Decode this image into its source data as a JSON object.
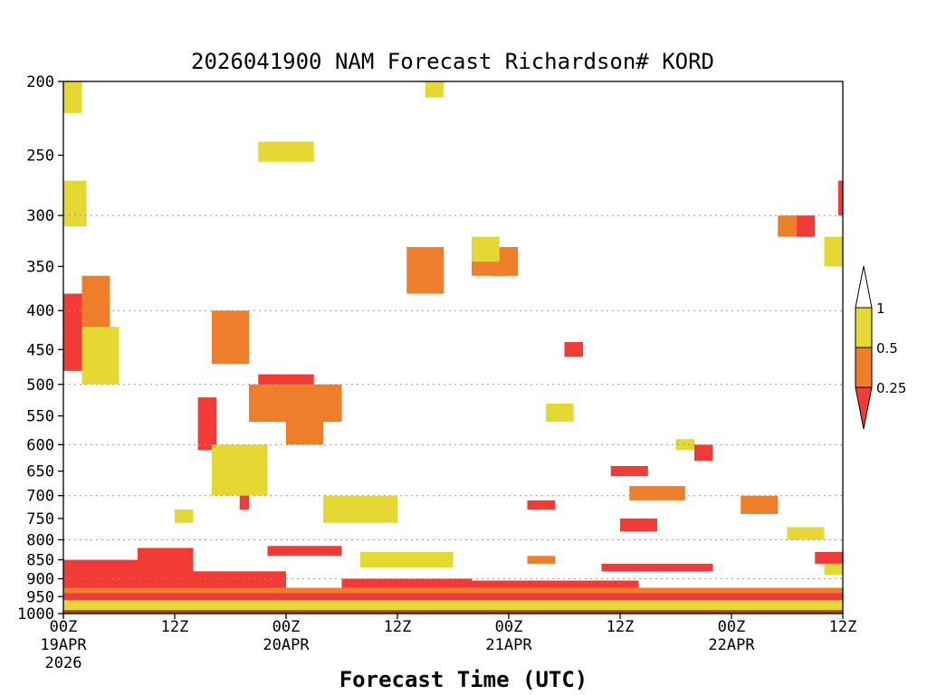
{
  "colors": {
    "frame": "#000000",
    "grid": "#9a9a9a",
    "surface": "#9a4a22",
    "ri_lt_0_25": "#f23a36",
    "ri_0_25_0_5": "#ee7e2a",
    "ri_0_5_1": "#e6d832",
    "ri_gt_1": "#ffffff",
    "credit": "#e0203a"
  },
  "chart_data": {
    "type": "heatmap",
    "title": "2026041900 NAM Forecast Richardson# KORD",
    "xlabel": "Forecast Time (UTC)",
    "ylabel": "",
    "y_scale": "log",
    "y_reversed": true,
    "ylim": [
      1000,
      200
    ],
    "xlim": [
      "2026-04-19 00Z",
      "2026-04-22 12Z"
    ],
    "y_ticks": [
      200,
      250,
      300,
      350,
      400,
      450,
      500,
      550,
      600,
      650,
      700,
      750,
      800,
      850,
      900,
      950,
      1000
    ],
    "y_gridlines": [
      300,
      400,
      500,
      600,
      700,
      800,
      900
    ],
    "x_ticks": [
      {
        "line1": "00Z",
        "line2": "19APR",
        "line3": "2026"
      },
      {
        "line1": "12Z",
        "line2": "",
        "line3": ""
      },
      {
        "line1": "00Z",
        "line2": "20APR",
        "line3": ""
      },
      {
        "line1": "12Z",
        "line2": "",
        "line3": ""
      },
      {
        "line1": "00Z",
        "line2": "21APR",
        "line3": ""
      },
      {
        "line1": "12Z",
        "line2": "",
        "line3": ""
      },
      {
        "line1": "00Z",
        "line2": "22APR",
        "line3": ""
      },
      {
        "line1": "12Z",
        "line2": "",
        "line3": ""
      }
    ],
    "colorbar": {
      "levels": [
        "0.25",
        "0.5",
        "1"
      ],
      "bins": [
        "<0.25",
        "0.25-0.5",
        "0.5-1",
        ">1"
      ]
    },
    "regions": [
      {
        "cls": "ri_lt_0_25",
        "t0": 0,
        "t1": 84,
        "p0": 1000,
        "p1": 960
      },
      {
        "cls": "ri_lt_0_25",
        "t0": 0,
        "t1": 84,
        "p0": 960,
        "p1": 930
      },
      {
        "cls": "ri_lt_0_25",
        "t0": 0,
        "t1": 14,
        "p0": 930,
        "p1": 850
      },
      {
        "cls": "ri_lt_0_25",
        "t0": 8,
        "t1": 14,
        "p0": 870,
        "p1": 820
      },
      {
        "cls": "ri_lt_0_25",
        "t0": 14,
        "t1": 24,
        "p0": 930,
        "p1": 880
      },
      {
        "cls": "ri_lt_0_25",
        "t0": 22,
        "t1": 30,
        "p0": 840,
        "p1": 815
      },
      {
        "cls": "ri_lt_0_25",
        "t0": 30,
        "t1": 44,
        "p0": 925,
        "p1": 900
      },
      {
        "cls": "ri_lt_0_25",
        "t0": 44,
        "t1": 62,
        "p0": 925,
        "p1": 905
      },
      {
        "cls": "ri_lt_0_25",
        "t0": 58,
        "t1": 70,
        "p0": 880,
        "p1": 860
      },
      {
        "cls": "ri_lt_0_25",
        "t0": 60,
        "t1": 64,
        "p0": 780,
        "p1": 750
      },
      {
        "cls": "ri_lt_0_25",
        "t0": 81,
        "t1": 84,
        "p0": 860,
        "p1": 830
      },
      {
        "cls": "ri_lt_0_25",
        "t0": 0,
        "t1": 3,
        "p0": 480,
        "p1": 380
      },
      {
        "cls": "ri_lt_0_25",
        "t0": 2,
        "t1": 4,
        "p0": 420,
        "p1": 370
      },
      {
        "cls": "ri_lt_0_25",
        "t0": 14.5,
        "t1": 16.5,
        "p0": 610,
        "p1": 520
      },
      {
        "cls": "ri_lt_0_25",
        "t0": 17,
        "t1": 19,
        "p0": 470,
        "p1": 440
      },
      {
        "cls": "ri_lt_0_25",
        "t0": 19,
        "t1": 20,
        "p0": 730,
        "p1": 680
      },
      {
        "cls": "ri_lt_0_25",
        "t0": 21,
        "t1": 27,
        "p0": 505,
        "p1": 485
      },
      {
        "cls": "ri_lt_0_25",
        "t0": 46,
        "t1": 48,
        "p0": 360,
        "p1": 340
      },
      {
        "cls": "ri_lt_0_25",
        "t0": 50,
        "t1": 53,
        "p0": 730,
        "p1": 710
      },
      {
        "cls": "ri_lt_0_25",
        "t0": 54,
        "t1": 56,
        "p0": 460,
        "p1": 440
      },
      {
        "cls": "ri_lt_0_25",
        "t0": 59,
        "t1": 63,
        "p0": 660,
        "p1": 640
      },
      {
        "cls": "ri_lt_0_25",
        "t0": 68,
        "t1": 70,
        "p0": 630,
        "p1": 600
      },
      {
        "cls": "ri_lt_0_25",
        "t0": 79,
        "t1": 81,
        "p0": 320,
        "p1": 300
      },
      {
        "cls": "ri_lt_0_25",
        "t0": 83.5,
        "t1": 84,
        "p0": 300,
        "p1": 270
      },
      {
        "cls": "ri_0_25_0_5",
        "t0": 0,
        "t1": 84,
        "p0": 940,
        "p1": 925
      },
      {
        "cls": "ri_0_25_0_5",
        "t0": 2,
        "t1": 5,
        "p0": 450,
        "p1": 360
      },
      {
        "cls": "ri_0_25_0_5",
        "t0": 16,
        "t1": 20,
        "p0": 470,
        "p1": 400
      },
      {
        "cls": "ri_0_25_0_5",
        "t0": 20,
        "t1": 30,
        "p0": 560,
        "p1": 500
      },
      {
        "cls": "ri_0_25_0_5",
        "t0": 24,
        "t1": 28,
        "p0": 600,
        "p1": 550
      },
      {
        "cls": "ri_0_25_0_5",
        "t0": 37,
        "t1": 41,
        "p0": 380,
        "p1": 330
      },
      {
        "cls": "ri_0_25_0_5",
        "t0": 44,
        "t1": 49,
        "p0": 360,
        "p1": 330
      },
      {
        "cls": "ri_0_25_0_5",
        "t0": 61,
        "t1": 67,
        "p0": 710,
        "p1": 680
      },
      {
        "cls": "ri_0_25_0_5",
        "t0": 73,
        "t1": 77,
        "p0": 740,
        "p1": 700
      },
      {
        "cls": "ri_0_25_0_5",
        "t0": 77,
        "t1": 79,
        "p0": 320,
        "p1": 300
      },
      {
        "cls": "ri_0_25_0_5",
        "t0": 50,
        "t1": 53,
        "p0": 860,
        "p1": 840
      },
      {
        "cls": "ri_0_5_1",
        "t0": 0,
        "t1": 84,
        "p0": 990,
        "p1": 960
      },
      {
        "cls": "ri_0_5_1",
        "t0": 0,
        "t1": 2,
        "p0": 220,
        "p1": 200
      },
      {
        "cls": "ri_0_5_1",
        "t0": 0,
        "t1": 2.5,
        "p0": 310,
        "p1": 270
      },
      {
        "cls": "ri_0_5_1",
        "t0": 2,
        "t1": 6,
        "p0": 500,
        "p1": 420
      },
      {
        "cls": "ri_0_5_1",
        "t0": 12,
        "t1": 14,
        "p0": 760,
        "p1": 730
      },
      {
        "cls": "ri_0_5_1",
        "t0": 16,
        "t1": 22,
        "p0": 700,
        "p1": 600
      },
      {
        "cls": "ri_0_5_1",
        "t0": 21,
        "t1": 27,
        "p0": 255,
        "p1": 240
      },
      {
        "cls": "ri_0_5_1",
        "t0": 28,
        "t1": 36,
        "p0": 760,
        "p1": 700
      },
      {
        "cls": "ri_0_5_1",
        "t0": 32,
        "t1": 42,
        "p0": 870,
        "p1": 830
      },
      {
        "cls": "ri_0_5_1",
        "t0": 39,
        "t1": 41,
        "p0": 210,
        "p1": 200
      },
      {
        "cls": "ri_0_5_1",
        "t0": 44,
        "t1": 47,
        "p0": 345,
        "p1": 320
      },
      {
        "cls": "ri_0_5_1",
        "t0": 52,
        "t1": 55,
        "p0": 560,
        "p1": 530
      },
      {
        "cls": "ri_0_5_1",
        "t0": 66,
        "t1": 68,
        "p0": 610,
        "p1": 590
      },
      {
        "cls": "ri_0_5_1",
        "t0": 78,
        "t1": 82,
        "p0": 800,
        "p1": 770
      },
      {
        "cls": "ri_0_5_1",
        "t0": 82,
        "t1": 84,
        "p0": 350,
        "p1": 320
      },
      {
        "cls": "ri_0_5_1",
        "t0": 82,
        "t1": 84,
        "p0": 890,
        "p1": 860
      }
    ]
  }
}
